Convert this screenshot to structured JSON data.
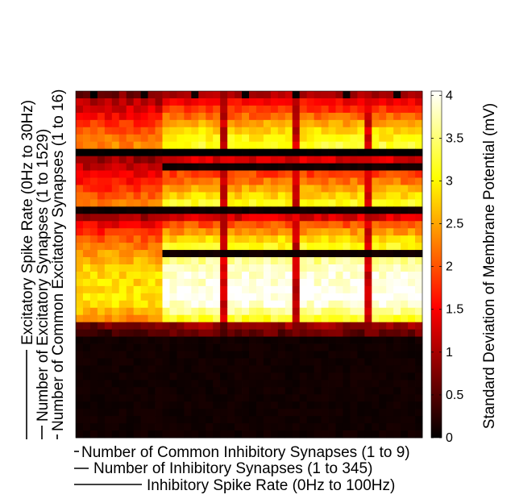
{
  "chart_data": {
    "type": "heatmap",
    "title": "",
    "xlabels": [
      "Number of Common Inhibitory Synapses (1 to 9)",
      "Number of Inhibitory Synapses (1 to 345)",
      "Inhibitory Spike Rate (0Hz to 100Hz)"
    ],
    "ylabels": [
      "Excitatory Spike Rate (0Hz to 30Hz)",
      "Number of Excitatory Synapses (1 to 1529)",
      "Number of Common Excitatory Synapses (1 to 16)"
    ],
    "colorbar": {
      "label": "Standard Deviation of Membrane Potential (mV)",
      "colormap": "hot",
      "range": [
        0,
        4.05
      ],
      "ticks": [
        0,
        0.5,
        1,
        1.5,
        2,
        2.5,
        3,
        3.5,
        4
      ],
      "tick_labels": [
        "0",
        "0.5",
        "1",
        "1.5",
        "2",
        "2.5",
        "3",
        "3.5",
        "4"
      ]
    },
    "grid": {
      "columns": 48,
      "rows": 48,
      "column_blocks": 6,
      "row_blocks": 3,
      "sub_rows_per_block": 16,
      "description_rows_top": "first 32 rows show structured values; remaining rows near zero"
    },
    "row_profile_block1": [
      0.5,
      1.5,
      1.8,
      2.1,
      2.5,
      2.8,
      3.0,
      3.2,
      0.0,
      1.3,
      1.6,
      1.9,
      2.2,
      2.5,
      2.8,
      3.1
    ],
    "row_profile_block2": [
      0.1,
      1.3,
      2.0,
      2.4,
      2.8,
      3.1,
      3.4,
      3.6,
      3.8,
      3.9,
      3.9,
      4.0,
      4.0,
      3.9,
      3.6,
      3.2
    ],
    "row_profile_block3": [
      1.5,
      1.0,
      0.2,
      0.2,
      0.2,
      0.1,
      0.1,
      0.1,
      0.1,
      0.1,
      0.1,
      0.1,
      0.1,
      0.1,
      0.1,
      0.1
    ],
    "dark_row_band_value": 0.1,
    "dark_column_value": 1.2,
    "left_block_value_scale": 0.72
  }
}
